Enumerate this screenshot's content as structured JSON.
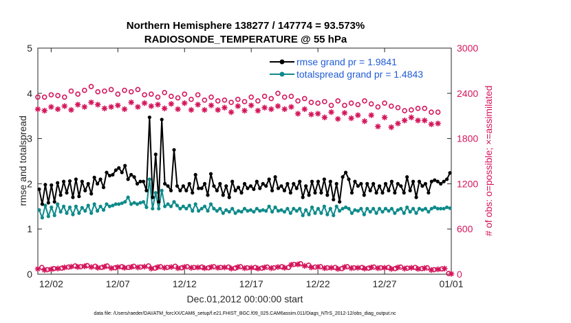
{
  "chart_data": {
    "type": "line",
    "title_line1": "Northern Hemisphere 138277 / 147774 = 93.573%",
    "title_line2": "RADIOSONDE_TEMPERATURE @ 55 hPa",
    "xlabel": "Dec.01,2012 00:00:00 start",
    "ylabel_left": "rmse and totalspread",
    "ylabel_right": "# of obs: o=possible; ×=assimilated",
    "footnote": "data file: /Users/raeder/DAI/ATM_forcXX/CAM6_setup/f.e21.FHIST_BGC.f09_025.CAM6assim.011/Diags_NTrS_2012-12/obs_diag_output.nc",
    "x_range_days": [
      0,
      31
    ],
    "x_ticks": [
      {
        "day": 1,
        "label": "12/02"
      },
      {
        "day": 6,
        "label": "12/07"
      },
      {
        "day": 11,
        "label": "12/12"
      },
      {
        "day": 16,
        "label": "12/17"
      },
      {
        "day": 21,
        "label": "12/22"
      },
      {
        "day": 26,
        "label": "12/27"
      },
      {
        "day": 31,
        "label": "01/01"
      }
    ],
    "ylim_left": [
      0,
      5
    ],
    "yticks_left": [
      "0",
      "1",
      "2",
      "3",
      "4",
      "5"
    ],
    "ylim_right": [
      0,
      3000
    ],
    "yticks_right": [
      "0",
      "600",
      "1200",
      "1800",
      "2400",
      "3000"
    ],
    "colors": {
      "rmse": "#000000",
      "spread": "#0e8a8a",
      "obs": "#d4145a",
      "legend_text": "#1f5bd6"
    },
    "series": [
      {
        "name": "rmse",
        "legend": "rmse grand pr = 1.9841",
        "axis": "left",
        "values": [
          1.88,
          1.55,
          1.98,
          1.58,
          1.97,
          1.6,
          2.02,
          1.75,
          2.05,
          1.8,
          2.06,
          1.7,
          2.1,
          1.72,
          2.05,
          1.85,
          2.0,
          1.78,
          2.14,
          2.0,
          2.1,
          1.92,
          2.25,
          2.18,
          2.2,
          2.3,
          2.35,
          2.25,
          2.4,
          2.1,
          2.2,
          2.15,
          2.0,
          2.05,
          2.05,
          1.85,
          3.47,
          1.7,
          2.65,
          1.6,
          3.42,
          2.0,
          1.95,
          1.85,
          2.75,
          1.95,
          1.85,
          1.95,
          1.85,
          2.0,
          1.8,
          2.2,
          1.9,
          1.9,
          2.0,
          1.75,
          2.22,
          1.95,
          1.85,
          2.0,
          1.75,
          1.95,
          1.7,
          2.05,
          1.85,
          1.92,
          1.8,
          2.0,
          1.9,
          1.95,
          1.88,
          2.05,
          1.9,
          2.0,
          1.95,
          2.1,
          1.85,
          2.15,
          1.9,
          1.95,
          1.85,
          2.0,
          1.8,
          2.0,
          1.9,
          2.05,
          1.7,
          1.95,
          1.75,
          2.05,
          1.8,
          2.05,
          1.8,
          2.1,
          1.75,
          2.05,
          1.65,
          2.0,
          1.6,
          2.15,
          2.25,
          2.1,
          1.8,
          2.05,
          1.95,
          2.0,
          1.75,
          2.0,
          1.85,
          2.0,
          1.8,
          1.95,
          1.8,
          2.0,
          1.85,
          2.05,
          1.8,
          2.0,
          1.95,
          1.8,
          2.15,
          1.85,
          2.05,
          1.7,
          2.05,
          1.95,
          2.0,
          1.8,
          2.05,
          2.08,
          2.05,
          2.0,
          2.05,
          2.1,
          2.24
        ]
      },
      {
        "name": "totalspread",
        "legend": "totalspread grand pr = 1.4843",
        "axis": "left",
        "values": [
          1.42,
          1.25,
          1.52,
          1.28,
          1.48,
          1.3,
          1.55,
          1.38,
          1.5,
          1.35,
          1.48,
          1.32,
          1.5,
          1.35,
          1.47,
          1.4,
          1.52,
          1.35,
          1.55,
          1.4,
          1.5,
          1.42,
          1.55,
          1.5,
          1.52,
          1.55,
          1.55,
          1.57,
          1.6,
          1.7,
          1.55,
          1.58,
          1.55,
          1.58,
          1.6,
          1.48,
          2.1,
          1.45,
          1.8,
          1.45,
          1.85,
          1.5,
          1.55,
          1.5,
          1.6,
          1.52,
          1.45,
          1.5,
          1.45,
          1.52,
          1.4,
          1.55,
          1.4,
          1.45,
          1.5,
          1.4,
          1.55,
          1.45,
          1.4,
          1.45,
          1.35,
          1.42,
          1.38,
          1.45,
          1.35,
          1.4,
          1.38,
          1.45,
          1.4,
          1.42,
          1.38,
          1.45,
          1.4,
          1.42,
          1.4,
          1.5,
          1.38,
          1.48,
          1.4,
          1.42,
          1.38,
          1.45,
          1.35,
          1.45,
          1.4,
          1.45,
          1.3,
          1.42,
          1.32,
          1.48,
          1.35,
          1.45,
          1.35,
          1.5,
          1.32,
          1.45,
          1.3,
          1.5,
          1.4,
          1.45,
          1.48,
          1.45,
          1.35,
          1.42,
          1.4,
          1.45,
          1.32,
          1.45,
          1.38,
          1.45,
          1.35,
          1.45,
          1.38,
          1.45,
          1.4,
          1.45,
          1.35,
          1.42,
          1.45,
          1.35,
          1.48,
          1.38,
          1.45,
          1.35,
          1.45,
          1.42,
          1.45,
          1.38,
          1.45,
          1.48,
          1.45,
          1.45,
          1.45,
          1.48,
          1.46
        ]
      },
      {
        "name": "obs possible",
        "marker": "o",
        "axis": "right",
        "x_days": [
          0,
          0.5,
          1,
          1.5,
          2,
          2.5,
          3,
          3.5,
          4,
          4.5,
          5,
          5.5,
          6,
          6.5,
          7,
          7.5,
          8,
          8.5,
          9,
          9.5,
          10,
          10.5,
          11,
          11.5,
          12,
          12.5,
          13,
          13.5,
          14,
          14.5,
          15,
          15.5,
          16,
          16.5,
          17,
          17.5,
          18,
          18.5,
          19,
          19.5,
          20,
          20.5,
          21,
          21.5,
          22,
          22.5,
          23,
          23.5,
          24,
          24.5,
          25,
          25.5,
          26,
          26.5,
          27,
          27.5,
          28,
          28.5,
          29,
          29.5,
          30
        ],
        "values": [
          2350,
          2350,
          2380,
          2370,
          2350,
          2430,
          2390,
          2440,
          2490,
          2420,
          2430,
          2450,
          2390,
          2440,
          2420,
          2450,
          2380,
          2390,
          2350,
          2410,
          2360,
          2340,
          2390,
          2320,
          2380,
          2310,
          2350,
          2300,
          2310,
          2280,
          2320,
          2290,
          2350,
          2300,
          2360,
          2330,
          2400,
          2350,
          2360,
          2300,
          2330,
          2280,
          2270,
          2290,
          2240,
          2300,
          2240,
          2270,
          2250,
          2300,
          2260,
          2220,
          2270,
          2230,
          2210,
          2170,
          2180,
          2200,
          2200,
          2150,
          2150
        ]
      },
      {
        "name": "obs assimilated",
        "marker": "*",
        "axis": "right",
        "x_days": [
          0,
          0.5,
          1,
          1.5,
          2,
          2.5,
          3,
          3.5,
          4,
          4.5,
          5,
          5.5,
          6,
          6.5,
          7,
          7.5,
          8,
          8.5,
          9,
          9.5,
          10,
          10.5,
          11,
          11.5,
          12,
          12.5,
          13,
          13.5,
          14,
          14.5,
          15,
          15.5,
          16,
          16.5,
          17,
          17.5,
          18,
          18.5,
          19,
          19.5,
          20,
          20.5,
          21,
          21.5,
          22,
          22.5,
          23,
          23.5,
          24,
          24.5,
          25,
          25.5,
          26,
          26.5,
          27,
          27.5,
          28,
          28.5,
          29,
          29.5,
          30
        ],
        "values": [
          2190,
          2170,
          2220,
          2190,
          2230,
          2180,
          2250,
          2220,
          2280,
          2250,
          2200,
          2220,
          2240,
          2190,
          2280,
          2220,
          2270,
          2230,
          2250,
          2200,
          2260,
          2190,
          2270,
          2180,
          2250,
          2180,
          2240,
          2180,
          2210,
          2150,
          2230,
          2170,
          2240,
          2170,
          2210,
          2190,
          2230,
          2190,
          2220,
          2130,
          2190,
          2120,
          2130,
          2080,
          2150,
          2060,
          2140,
          2070,
          2110,
          2030,
          2110,
          1960,
          2080,
          1950,
          2000,
          2040,
          2080,
          2040,
          2040,
          1990,
          2000
        ]
      },
      {
        "name": "obs possible near zero",
        "marker": "o",
        "axis": "right",
        "x_days": [
          0.3,
          0.7,
          1.2,
          1.8,
          2.3,
          2.8,
          3.2,
          3.7,
          4.3,
          4.8,
          5.2,
          5.8,
          6.3,
          6.8,
          7.2,
          7.7,
          8.3,
          8.8,
          9.2,
          9.7,
          10.3,
          10.8,
          11.2,
          11.7,
          12.3,
          12.8,
          13.2,
          13.7,
          14.3,
          14.8,
          15.2,
          15.7,
          16.3,
          16.8,
          17.2,
          17.7,
          18.3,
          18.8,
          19.2,
          19.7,
          20.3,
          20.8,
          21.2,
          21.7,
          22.3,
          22.8,
          23.2,
          23.7,
          24.3,
          24.8,
          25.2,
          25.7,
          26.3,
          26.8,
          27.2,
          27.7,
          28.3,
          28.8,
          29.2,
          29.7,
          30.3,
          30.8
        ],
        "values": [
          90,
          60,
          75,
          80,
          95,
          110,
          100,
          115,
          105,
          90,
          110,
          85,
          100,
          90,
          105,
          95,
          110,
          80,
          100,
          90,
          105,
          85,
          100,
          90,
          95,
          85,
          100,
          90,
          95,
          80,
          100,
          85,
          90,
          80,
          95,
          85,
          100,
          90,
          130,
          140,
          120,
          95,
          100,
          85,
          90,
          75,
          100,
          85,
          90,
          80,
          95,
          85,
          90,
          75,
          95,
          80,
          90,
          75,
          85,
          60,
          70,
          10
        ]
      },
      {
        "name": "obs assimilated near zero",
        "marker": "*",
        "axis": "right",
        "x_days": [
          0,
          0.5,
          1,
          1.5,
          2,
          2.5,
          3,
          3.5,
          4,
          4.5,
          5,
          5.5,
          6,
          6.5,
          7,
          7.5,
          8,
          8.5,
          9,
          9.5,
          10,
          10.5,
          11,
          11.5,
          12,
          12.5,
          13,
          13.5,
          14,
          14.5,
          15,
          15.5,
          16,
          16.5,
          17,
          17.5,
          18,
          18.5,
          19,
          19.5,
          20,
          20.5,
          21,
          21.5,
          22,
          22.5,
          23,
          23.5,
          24,
          24.5,
          25,
          25.5,
          26,
          26.5,
          27,
          27.5,
          28,
          28.5,
          29,
          29.5,
          30,
          30.5,
          31
        ],
        "values": [
          70,
          55,
          65,
          75,
          90,
          100,
          95,
          105,
          95,
          85,
          100,
          80,
          95,
          85,
          95,
          90,
          100,
          75,
          95,
          85,
          95,
          80,
          95,
          85,
          90,
          80,
          95,
          85,
          90,
          75,
          95,
          80,
          85,
          75,
          90,
          80,
          95,
          85,
          125,
          130,
          110,
          90,
          95,
          80,
          85,
          70,
          95,
          80,
          85,
          75,
          90,
          80,
          85,
          70,
          90,
          75,
          85,
          70,
          80,
          55,
          65,
          75,
          5
        ]
      }
    ]
  }
}
